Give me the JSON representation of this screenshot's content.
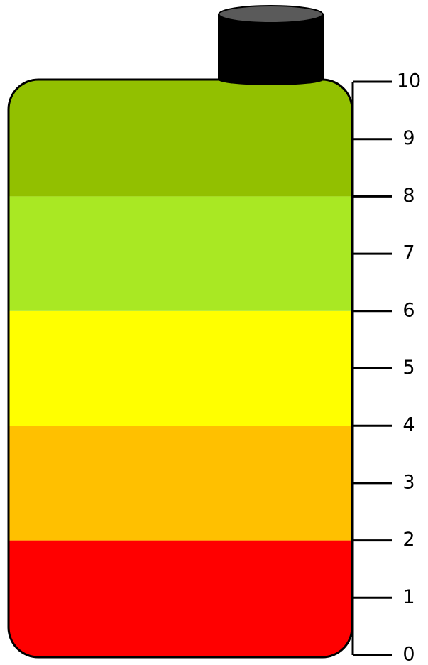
{
  "chart_data": {
    "type": "stacked_bar",
    "categories": [
      null
    ],
    "series": [
      {
        "color": "#ff0000",
        "values": [
          2
        ]
      },
      {
        "color": "#ffc000",
        "values": [
          2
        ]
      },
      {
        "color": "#ffff00",
        "values": [
          2
        ]
      },
      {
        "color": "#a9e823",
        "values": [
          2
        ]
      },
      {
        "color": "#92c000",
        "values": [
          2
        ]
      }
    ],
    "ylim": [
      0,
      10
    ],
    "yticks": [
      0,
      1,
      2,
      3,
      4,
      5,
      6,
      7,
      8,
      9,
      10
    ]
  }
}
